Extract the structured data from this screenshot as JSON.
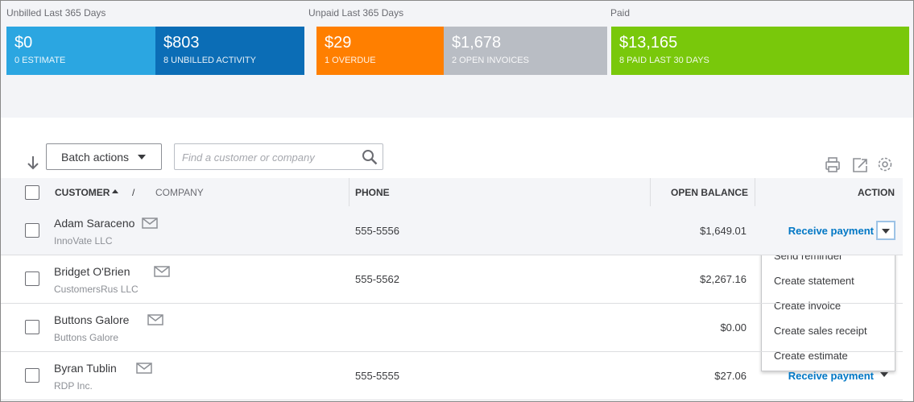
{
  "summary": {
    "groups": [
      {
        "label": "Unbilled Last 365 Days"
      },
      {
        "label": "Unpaid Last 365 Days"
      },
      {
        "label": "Paid"
      }
    ],
    "tiles": [
      {
        "amount": "$0",
        "caption": "0 ESTIMATE",
        "color": "#2ba6e1"
      },
      {
        "amount": "$803",
        "caption": "8 UNBILLED ACTIVITY",
        "color": "#0b6db6"
      },
      {
        "amount": "$29",
        "caption": "1 OVERDUE",
        "color": "#ff7f00"
      },
      {
        "amount": "$1,678",
        "caption": "2 OPEN INVOICES",
        "color": "#b9bdc4"
      },
      {
        "amount": "$13,165",
        "caption": "8 PAID LAST 30 DAYS",
        "color": "#79c80b"
      }
    ]
  },
  "toolbar": {
    "batch_actions": "Batch actions",
    "search_placeholder": "Find a customer or company"
  },
  "table": {
    "headers": {
      "customer": "CUSTOMER",
      "separator": "/",
      "company": "COMPANY",
      "phone": "PHONE",
      "open_balance": "OPEN BALANCE",
      "action": "ACTION"
    },
    "rows": [
      {
        "name": "Adam Saraceno",
        "company": "InnoVate LLC",
        "phone": "555-5556",
        "balance": "$1,649.01",
        "action": "Receive payment"
      },
      {
        "name": "Bridget O'Brien",
        "company": "CustomersRus LLC",
        "phone": "555-5562",
        "balance": "$2,267.16"
      },
      {
        "name": "Buttons Galore",
        "company": "Buttons Galore",
        "balance": "$0.00"
      },
      {
        "name": "Byran Tublin",
        "company": "RDP Inc.",
        "phone": "555-5555",
        "balance": "$27.06",
        "action": "Receive payment"
      }
    ]
  },
  "dropdown": {
    "items": [
      "Send reminder",
      "Create statement",
      "Create invoice",
      "Create sales receipt",
      "Create estimate"
    ]
  }
}
